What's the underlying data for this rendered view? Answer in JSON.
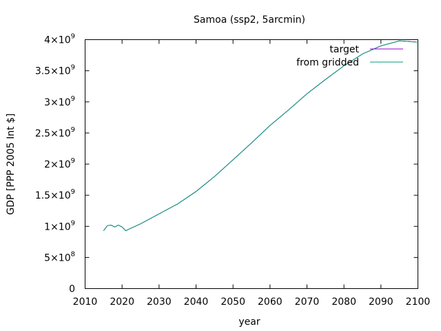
{
  "chart_data": {
    "type": "line",
    "title": "Samoa (ssp2, 5arcmin)",
    "xlabel": "year",
    "ylabel": "GDP [PPP 2005 Int $]",
    "xlim": [
      2010,
      2100
    ],
    "ylim": [
      0,
      4000000000
    ],
    "x_ticks": [
      {
        "value": 2010,
        "label": "2010"
      },
      {
        "value": 2020,
        "label": "2020"
      },
      {
        "value": 2030,
        "label": "2030"
      },
      {
        "value": 2040,
        "label": "2040"
      },
      {
        "value": 2050,
        "label": "2050"
      },
      {
        "value": 2060,
        "label": "2060"
      },
      {
        "value": 2070,
        "label": "2070"
      },
      {
        "value": 2080,
        "label": "2080"
      },
      {
        "value": 2090,
        "label": "2090"
      },
      {
        "value": 2100,
        "label": "2100"
      }
    ],
    "y_ticks": [
      {
        "value": 0,
        "mantissa": "0",
        "exp": ""
      },
      {
        "value": 500000000,
        "mantissa": "5×10",
        "exp": "8"
      },
      {
        "value": 1000000000,
        "mantissa": "1×10",
        "exp": "9"
      },
      {
        "value": 1500000000,
        "mantissa": "1.5×10",
        "exp": "9"
      },
      {
        "value": 2000000000,
        "mantissa": "2×10",
        "exp": "9"
      },
      {
        "value": 2500000000,
        "mantissa": "2.5×10",
        "exp": "9"
      },
      {
        "value": 3000000000,
        "mantissa": "3×10",
        "exp": "9"
      },
      {
        "value": 3500000000,
        "mantissa": "3.5×10",
        "exp": "9"
      },
      {
        "value": 4000000000,
        "mantissa": "4×10",
        "exp": "9"
      }
    ],
    "grid": false,
    "legend_position": "top-right",
    "series": [
      {
        "name": "target",
        "color": "#9400d3",
        "x": [
          2015,
          2016,
          2017,
          2018,
          2019,
          2020,
          2021,
          2022,
          2025,
          2030,
          2035,
          2040,
          2045,
          2050,
          2055,
          2060,
          2065,
          2070,
          2075,
          2080,
          2085,
          2090,
          2095,
          2100
        ],
        "y": [
          930000000,
          1010000000,
          1020000000,
          990000000,
          1020000000,
          990000000,
          930000000,
          960000000,
          1040000000,
          1200000000,
          1360000000,
          1560000000,
          1800000000,
          2070000000,
          2340000000,
          2620000000,
          2870000000,
          3130000000,
          3360000000,
          3580000000,
          3770000000,
          3900000000,
          3980000000,
          3960000000
        ]
      },
      {
        "name": "from gridded",
        "color": "#009e73",
        "x": [
          2015,
          2016,
          2017,
          2018,
          2019,
          2020,
          2021,
          2022,
          2025,
          2030,
          2035,
          2040,
          2045,
          2050,
          2055,
          2060,
          2065,
          2070,
          2075,
          2080,
          2085,
          2090,
          2095,
          2100
        ],
        "y": [
          930000000,
          1010000000,
          1020000000,
          990000000,
          1020000000,
          990000000,
          930000000,
          960000000,
          1040000000,
          1200000000,
          1360000000,
          1560000000,
          1800000000,
          2070000000,
          2340000000,
          2620000000,
          2870000000,
          3130000000,
          3360000000,
          3580000000,
          3770000000,
          3900000000,
          3980000000,
          3960000000
        ]
      }
    ]
  }
}
